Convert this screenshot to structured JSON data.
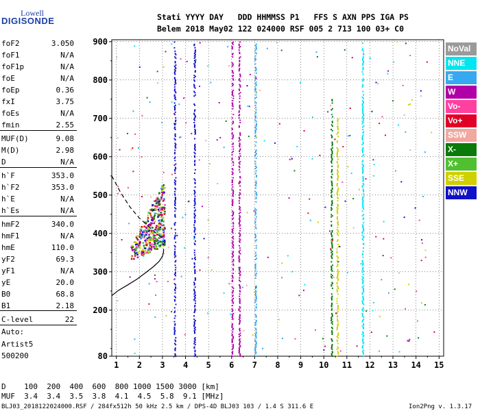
{
  "logo": {
    "line1": "Lowell",
    "line2": "DIGISONDE"
  },
  "header": {
    "line1": "Stati YYYY DAY   DDD HHMMSS P1   FFS S AXN PPS IGA PS",
    "line2": "Belem 2018 May02 122 024000 RSF 005 2 713 100 03+ C0"
  },
  "params": [
    {
      "name": "foF2",
      "value": "3.050"
    },
    {
      "name": "foF1",
      "value": "N/A"
    },
    {
      "name": "foF1p",
      "value": "N/A"
    },
    {
      "name": "foE",
      "value": "N/A"
    },
    {
      "name": "foEp",
      "value": "0.36"
    },
    {
      "name": "fxI",
      "value": "3.75"
    },
    {
      "name": "foEs",
      "value": "N/A"
    },
    {
      "name": "fmin",
      "value": "2.55"
    },
    {
      "name": "MUF(D)",
      "value": "9.08"
    },
    {
      "name": "M(D)",
      "value": "2.98"
    },
    {
      "name": "D",
      "value": "N/A"
    },
    {
      "name": "h`F",
      "value": "353.0"
    },
    {
      "name": "h`F2",
      "value": "353.0"
    },
    {
      "name": "h`E",
      "value": "N/A"
    },
    {
      "name": "h`Es",
      "value": "N/A"
    },
    {
      "name": "hmF2",
      "value": "340.0"
    },
    {
      "name": "hmF1",
      "value": "N/A"
    },
    {
      "name": "hmE",
      "value": "110.0"
    },
    {
      "name": "yF2",
      "value": "69.3"
    },
    {
      "name": "yF1",
      "value": "N/A"
    },
    {
      "name": "yE",
      "value": "20.0"
    },
    {
      "name": "B0",
      "value": "68.8"
    },
    {
      "name": "B1",
      "value": "2.18"
    },
    {
      "name": "C-level",
      "value": "22"
    }
  ],
  "auto": {
    "line1": "Auto:",
    "line2": "Artist5",
    "line3": "500200"
  },
  "legend": [
    {
      "label": "NoVal",
      "color": "#9a9a9a"
    },
    {
      "label": "NNE",
      "color": "#00e5f0"
    },
    {
      "label": "E",
      "color": "#38a8f0"
    },
    {
      "label": "W",
      "color": "#b000a8"
    },
    {
      "label": "Vo-",
      "color": "#ff40a0"
    },
    {
      "label": "Vo+",
      "color": "#e00028"
    },
    {
      "label": "SSW",
      "color": "#f0a8a0"
    },
    {
      "label": "X-",
      "color": "#0a7a0a"
    },
    {
      "label": "X+",
      "color": "#50c030"
    },
    {
      "label": "SSE",
      "color": "#d0d000"
    },
    {
      "label": "NNW",
      "color": "#1010c8"
    }
  ],
  "muf_table": {
    "d_row": "D    100  200  400  600  800 1000 1500 3000 [km]",
    "muf_row": "MUF  3.4  3.4  3.5  3.8  4.1  4.5  5.8  9.1 [MHz]"
  },
  "footer": {
    "left": "BLJ03_2018122024000.RSF / 284fx512h 50 kHz 2.5 km / DPS-4D BLJ03 103 / 1.4 S 311.6 E",
    "right": "Ion2Png v. 1.3.17"
  },
  "chart_data": {
    "type": "scatter",
    "title": "",
    "xlabel": "",
    "ylabel": "",
    "xlim": [
      0.8,
      15.2
    ],
    "ylim": [
      80,
      905
    ],
    "x_ticks": [
      1,
      2,
      3,
      4,
      5,
      6,
      7,
      8,
      9,
      10,
      11,
      12,
      13,
      14,
      15
    ],
    "y_ticks": [
      80,
      200,
      300,
      400,
      500,
      600,
      700,
      800,
      900
    ],
    "grid": true,
    "legend_position": "right",
    "trace_o": {
      "name": "O-trace (dashed)",
      "style": "dashed",
      "points": [
        [
          0.8,
          550
        ],
        [
          1.2,
          505
        ],
        [
          1.6,
          468
        ],
        [
          2.0,
          440
        ],
        [
          2.4,
          418
        ],
        [
          2.7,
          402
        ],
        [
          2.95,
          390
        ],
        [
          3.05,
          385
        ]
      ]
    },
    "profile": {
      "name": "profile (solid)",
      "style": "solid",
      "points": [
        [
          0.8,
          238
        ],
        [
          1.1,
          252
        ],
        [
          1.5,
          266
        ],
        [
          1.9,
          281
        ],
        [
          2.3,
          299
        ],
        [
          2.6,
          313
        ],
        [
          2.85,
          327
        ],
        [
          3.0,
          340
        ],
        [
          3.05,
          353
        ],
        [
          3.05,
          360
        ]
      ]
    },
    "f_layer_cluster": {
      "freq_range": [
        1.6,
        3.1
      ],
      "height_range": [
        320,
        560
      ],
      "colors": [
        "Vo+",
        "Vo-",
        "X-",
        "X+",
        "SSE",
        "NNW",
        "E",
        "W"
      ]
    },
    "interference_lines": [
      {
        "freq": 4.4,
        "color": "NNW",
        "from": 80,
        "to": 900
      },
      {
        "freq": 6.05,
        "color": "W",
        "from": 80,
        "to": 900
      },
      {
        "freq": 6.35,
        "color": "W",
        "from": 80,
        "to": 900
      },
      {
        "freq": 7.05,
        "color": "E",
        "from": 80,
        "to": 900
      },
      {
        "freq": 10.35,
        "color": "X-",
        "from": 80,
        "to": 750
      },
      {
        "freq": 10.6,
        "color": "SSE",
        "from": 80,
        "to": 700
      },
      {
        "freq": 11.7,
        "color": "NNE",
        "from": 80,
        "to": 900
      },
      {
        "freq": 3.55,
        "color": "NNW",
        "from": 80,
        "to": 900
      }
    ]
  }
}
